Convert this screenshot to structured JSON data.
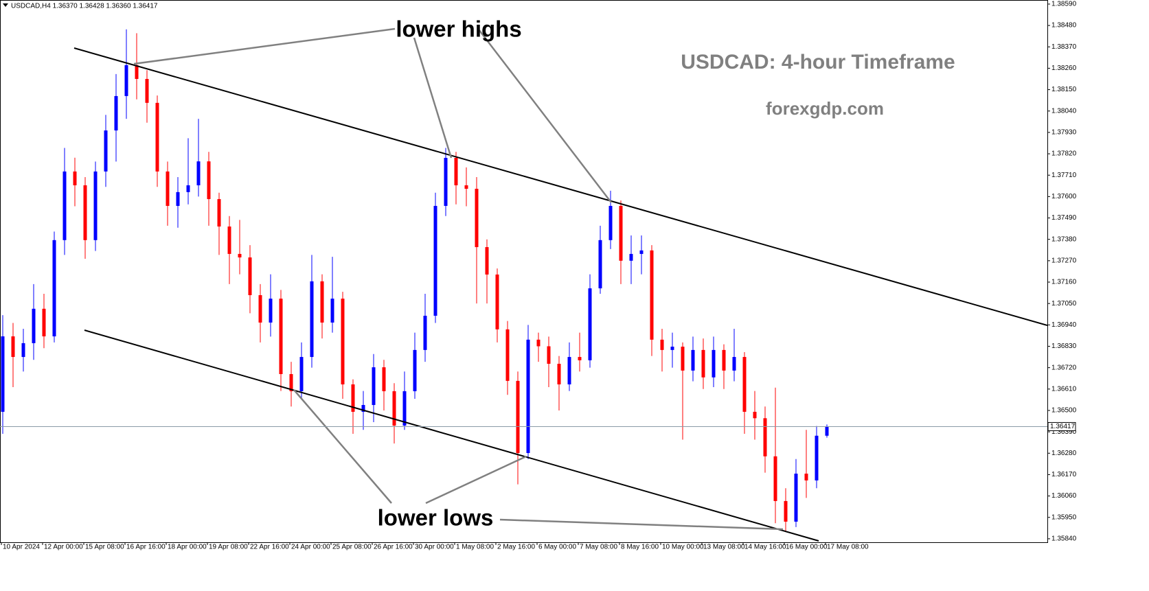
{
  "chart_data": {
    "type": "candlestick",
    "header": "USDCAD,H4  1.36370 1.36428 1.36360 1.36417",
    "title": "USDCAD: 4-hour Timeframe",
    "subtitle": "forexgdp.com",
    "annotations": [
      "lower highs",
      "lower lows"
    ],
    "current_price": 1.36417,
    "up_color": "#0000ff",
    "down_color": "#ff0000",
    "categories": [
      "10 Apr 2024",
      null,
      null,
      null,
      "12 Apr 00:00",
      null,
      null,
      null,
      "15 Apr 08:00",
      null,
      null,
      null,
      "16 Apr 16:00",
      null,
      null,
      null,
      "18 Apr 00:00",
      null,
      null,
      null,
      "19 Apr 08:00",
      null,
      null,
      null,
      "22 Apr 16:00",
      null,
      null,
      null,
      "24 Apr 00:00",
      null,
      null,
      null,
      "25 Apr 08:00",
      null,
      null,
      null,
      "26 Apr 16:00",
      null,
      null,
      null,
      "30 Apr 00:00",
      null,
      null,
      null,
      "1 May 08:00",
      null,
      null,
      null,
      "2 May 16:00",
      null,
      null,
      null,
      "6 May 00:00",
      null,
      null,
      null,
      "7 May 08:00",
      null,
      null,
      null,
      "8 May 16:00",
      null,
      null,
      null,
      "10 May 00:00",
      null,
      null,
      null,
      "13 May 08:00",
      null,
      null,
      null,
      "14 May 16:00",
      null,
      null,
      null,
      "16 May 00:00",
      null,
      null,
      null,
      "17 May 08:00"
    ],
    "open": [
      1.36493,
      1.36881,
      1.36775,
      1.36846,
      1.37023,
      1.36881,
      1.37376,
      1.37729,
      1.37658,
      1.37376,
      1.37729,
      1.3794,
      1.38117,
      1.38276,
      1.38205,
      1.38082,
      1.37729,
      1.37552,
      1.37623,
      1.37658,
      1.37781,
      1.37587,
      1.37446,
      1.37305,
      1.37287,
      1.37093,
      1.36952,
      1.37075,
      1.36687,
      1.36599,
      1.36775,
      1.37164,
      1.36952,
      1.37075,
      1.36634,
      1.36493,
      1.36528,
      1.36722,
      1.36599,
      1.36422,
      1.36599,
      1.36811,
      1.36987,
      1.37552,
      1.37799,
      1.37658,
      1.3764,
      1.3734,
      1.37199,
      1.36917,
      1.36652,
      1.36281,
      1.36864,
      1.3683,
      1.3674,
      1.36634,
      1.36775,
      1.36758,
      1.37128,
      1.37376,
      1.37552,
      1.3727,
      1.37305,
      1.37323,
      1.36864,
      1.36811,
      1.36828,
      1.36705,
      1.36811,
      1.3667,
      1.36811,
      1.36705,
      1.36775,
      1.36493,
      1.3646,
      1.36264,
      1.36034,
      1.35928,
      1.36175,
      1.3614,
      1.3637
    ],
    "high": [
      1.3699,
      1.3695,
      1.3692,
      1.3715,
      1.371,
      1.3742,
      1.3785,
      1.378,
      1.377,
      1.3778,
      1.3802,
      1.3823,
      1.3846,
      1.3844,
      1.3825,
      1.3812,
      1.3778,
      1.377,
      1.379,
      1.38,
      1.3783,
      1.3762,
      1.375,
      1.3748,
      1.3735,
      1.3715,
      1.372,
      1.3712,
      1.3675,
      1.3685,
      1.373,
      1.372,
      1.3729,
      1.3711,
      1.3666,
      1.366,
      1.3679,
      1.3676,
      1.3664,
      1.367,
      1.369,
      1.371,
      1.3762,
      1.3785,
      1.3783,
      1.3775,
      1.377,
      1.3738,
      1.3723,
      1.3696,
      1.367,
      1.3694,
      1.369,
      1.3688,
      1.3678,
      1.3685,
      1.369,
      1.372,
      1.3745,
      1.3763,
      1.3758,
      1.374,
      1.374,
      1.3735,
      1.3692,
      1.369,
      1.3685,
      1.3688,
      1.3687,
      1.3688,
      1.3684,
      1.3692,
      1.368,
      1.366,
      1.3652,
      1.36617,
      1.361,
      1.3625,
      1.364,
      1.3642,
      1.36428
    ],
    "low": [
      1.3638,
      1.3662,
      1.367,
      1.3676,
      1.3682,
      1.3685,
      1.373,
      1.3755,
      1.3728,
      1.3732,
      1.3765,
      1.3778,
      1.38,
      1.381,
      1.3798,
      1.3765,
      1.3745,
      1.3744,
      1.3756,
      1.376,
      1.3745,
      1.373,
      1.3715,
      1.372,
      1.37,
      1.3685,
      1.3688,
      1.366,
      1.3652,
      1.3656,
      1.3672,
      1.3687,
      1.369,
      1.3656,
      1.3638,
      1.364,
      1.3644,
      1.365,
      1.3633,
      1.364,
      1.3656,
      1.3675,
      1.3695,
      1.375,
      1.3756,
      1.3755,
      1.3705,
      1.3705,
      1.3685,
      1.3658,
      1.3612,
      1.3625,
      1.3675,
      1.3662,
      1.365,
      1.366,
      1.367,
      1.3672,
      1.371,
      1.3733,
      1.3715,
      1.3715,
      1.372,
      1.3678,
      1.367,
      1.3672,
      1.3635,
      1.3665,
      1.3661,
      1.3662,
      1.3661,
      1.3665,
      1.3638,
      1.3635,
      1.3618,
      1.3592,
      1.3588,
      1.359,
      1.3605,
      1.361,
      1.3636
    ],
    "close": [
      1.36881,
      1.36775,
      1.36846,
      1.37023,
      1.36881,
      1.37376,
      1.37729,
      1.37658,
      1.37376,
      1.37729,
      1.3794,
      1.38117,
      1.38276,
      1.38205,
      1.38082,
      1.37729,
      1.37552,
      1.37623,
      1.37658,
      1.37781,
      1.37587,
      1.37446,
      1.37305,
      1.37287,
      1.37093,
      1.36952,
      1.37075,
      1.36687,
      1.36599,
      1.36775,
      1.37164,
      1.36952,
      1.37075,
      1.36634,
      1.36493,
      1.36528,
      1.36722,
      1.36599,
      1.36422,
      1.36599,
      1.36811,
      1.36987,
      1.37552,
      1.37799,
      1.37658,
      1.3764,
      1.3734,
      1.37199,
      1.36917,
      1.36652,
      1.36281,
      1.36864,
      1.3683,
      1.3674,
      1.36634,
      1.36775,
      1.36758,
      1.37128,
      1.37376,
      1.37552,
      1.3727,
      1.37305,
      1.37323,
      1.36864,
      1.36811,
      1.36828,
      1.36705,
      1.36811,
      1.3667,
      1.36811,
      1.36705,
      1.36775,
      1.36493,
      1.3646,
      1.36264,
      1.36034,
      1.35928,
      1.36175,
      1.3614,
      1.3637,
      1.36417
    ],
    "ylim": [
      1.35822,
      1.38611
    ],
    "yticks": [
      {
        "value": 1.3584,
        "label": "1.35840"
      },
      {
        "value": 1.3595,
        "label": "1.35950"
      },
      {
        "value": 1.3606,
        "label": "1.36060"
      },
      {
        "value": 1.3617,
        "label": "1.36170"
      },
      {
        "value": 1.3628,
        "label": "1.36280"
      },
      {
        "value": 1.3639,
        "label": "1.36390"
      },
      {
        "value": 1.365,
        "label": "1.36500"
      },
      {
        "value": 1.3661,
        "label": "1.36610"
      },
      {
        "value": 1.3672,
        "label": "1.36720"
      },
      {
        "value": 1.3683,
        "label": "1.36830"
      },
      {
        "value": 1.3694,
        "label": "1.36940"
      },
      {
        "value": 1.3705,
        "label": "1.37050"
      },
      {
        "value": 1.3716,
        "label": "1.37160"
      },
      {
        "value": 1.3727,
        "label": "1.37270"
      },
      {
        "value": 1.3738,
        "label": "1.37380"
      },
      {
        "value": 1.3749,
        "label": "1.37490"
      },
      {
        "value": 1.376,
        "label": "1.37600"
      },
      {
        "value": 1.3771,
        "label": "1.37710"
      },
      {
        "value": 1.3782,
        "label": "1.37820"
      },
      {
        "value": 1.3793,
        "label": "1.37930"
      },
      {
        "value": 1.3804,
        "label": "1.38040"
      },
      {
        "value": 1.3815,
        "label": "1.38150"
      },
      {
        "value": 1.3826,
        "label": "1.38260"
      },
      {
        "value": 1.3837,
        "label": "1.38370"
      },
      {
        "value": 1.3848,
        "label": "1.38480"
      },
      {
        "value": 1.3859,
        "label": "1.38590"
      }
    ],
    "grid": false
  }
}
